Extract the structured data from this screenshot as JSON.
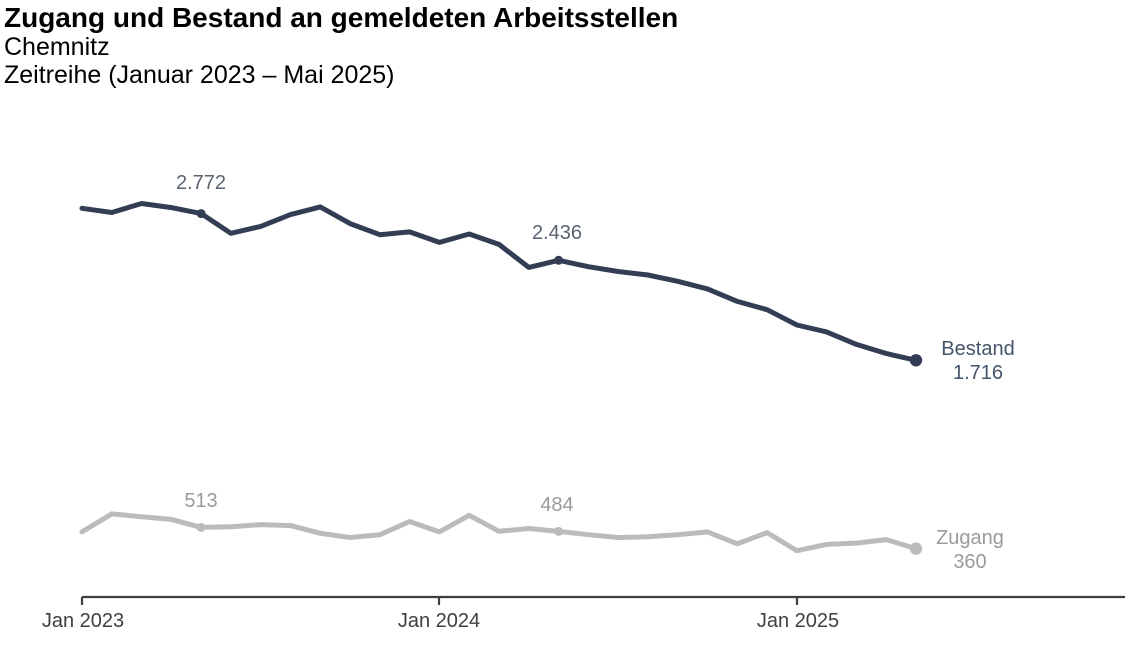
{
  "header": {
    "title": "Zugang und Bestand an gemeldeten Arbeitsstellen",
    "subtitle": "Chemnitz",
    "period": "Zeitreihe (Januar 2023 – Mai 2025)"
  },
  "chart_data": {
    "type": "line",
    "title": "Zugang und Bestand an gemeldeten Arbeitsstellen",
    "region": "Chemnitz",
    "period": "Januar 2023 – Mai 2025",
    "grid": false,
    "legend_position": "end-of-line",
    "axis_color": "#3F3F3F",
    "text_color": "#404040",
    "x_months": [
      "Jan 2023",
      "Feb 2023",
      "Mär 2023",
      "Apr 2023",
      "Mai 2023",
      "Jun 2023",
      "Jul 2023",
      "Aug 2023",
      "Sep 2023",
      "Okt 2023",
      "Nov 2023",
      "Dez 2023",
      "Jan 2024",
      "Feb 2024",
      "Mär 2024",
      "Apr 2024",
      "Mai 2024",
      "Jun 2024",
      "Jul 2024",
      "Aug 2024",
      "Sep 2024",
      "Okt 2024",
      "Nov 2024",
      "Dez 2024",
      "Jan 2025",
      "Feb 2025",
      "Mär 2025",
      "Apr 2025",
      "Mai 2025"
    ],
    "x_tick_labels": [
      "Jan 2023",
      "Jan 2024",
      "Jan 2025"
    ],
    "x_tick_indices": [
      0,
      12,
      24
    ],
    "series": [
      {
        "name": "Bestand",
        "color": "#333D54",
        "label_color": "#44546A",
        "values": [
          2810,
          2780,
          2845,
          2815,
          2772,
          2630,
          2680,
          2765,
          2820,
          2700,
          2620,
          2640,
          2565,
          2625,
          2550,
          2385,
          2436,
          2390,
          2355,
          2330,
          2285,
          2230,
          2140,
          2080,
          1970,
          1920,
          1830,
          1765,
          1716
        ],
        "highlights": [
          {
            "index": 4,
            "month": "Mai 2023",
            "value": 2772,
            "label": "2.772"
          },
          {
            "index": 16,
            "month": "Mai 2024",
            "value": 2436,
            "label": "2.436"
          },
          {
            "index": 28,
            "month": "Mai 2025",
            "value": 1716,
            "label": "1.716"
          }
        ]
      },
      {
        "name": "Zugang",
        "color": "#BBBBBB",
        "label_color": "#9B9B9B",
        "values": [
          480,
          610,
          590,
          570,
          513,
          518,
          533,
          526,
          470,
          440,
          460,
          555,
          480,
          600,
          485,
          505,
          484,
          460,
          440,
          445,
          460,
          480,
          395,
          475,
          345,
          390,
          400,
          425,
          360
        ],
        "highlights": [
          {
            "index": 4,
            "month": "Mai 2023",
            "value": 513,
            "label": "513"
          },
          {
            "index": 16,
            "month": "Mai 2024",
            "value": 484,
            "label": "484"
          },
          {
            "index": 28,
            "month": "Mai 2025",
            "value": 360,
            "label": "360"
          }
        ]
      }
    ]
  }
}
